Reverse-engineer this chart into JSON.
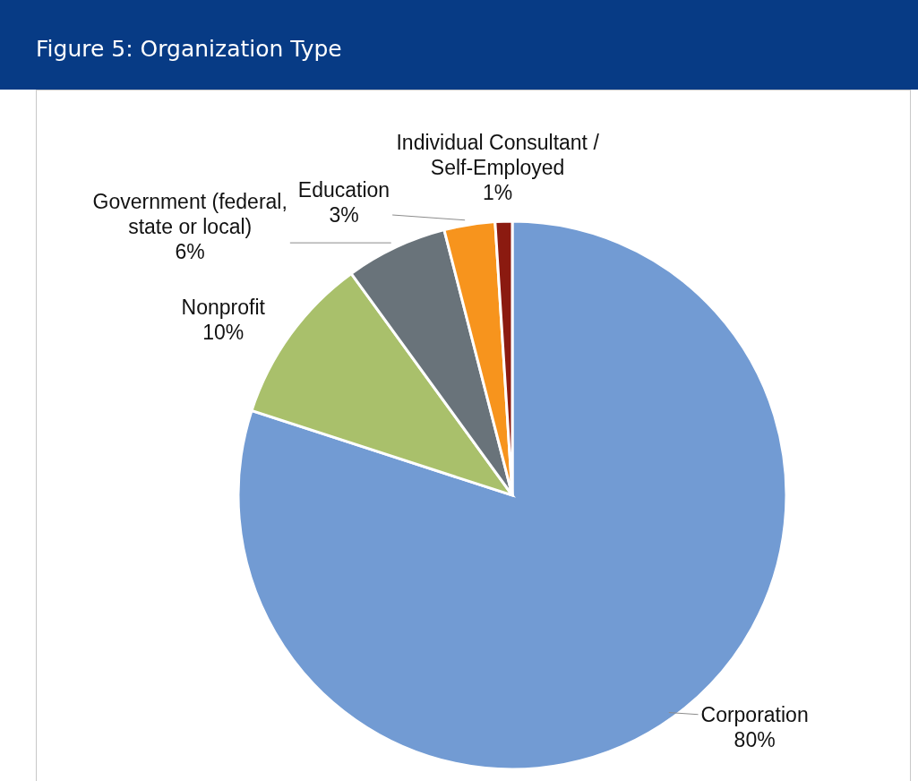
{
  "chart_data": {
    "type": "pie",
    "title": "Figure 5: Organization Type",
    "categories": [
      "Corporation",
      "Nonprofit",
      "Government (federal, state or local)",
      "Education",
      "Individual Consultant / Self-Employed"
    ],
    "values": [
      80,
      10,
      6,
      3,
      1
    ],
    "colors": [
      "#729bd3",
      "#a9c06b",
      "#69737a",
      "#f7941d",
      "#8b1a10"
    ],
    "value_labels": [
      "80%",
      "10%",
      "6%",
      "3%",
      "1%"
    ]
  }
}
